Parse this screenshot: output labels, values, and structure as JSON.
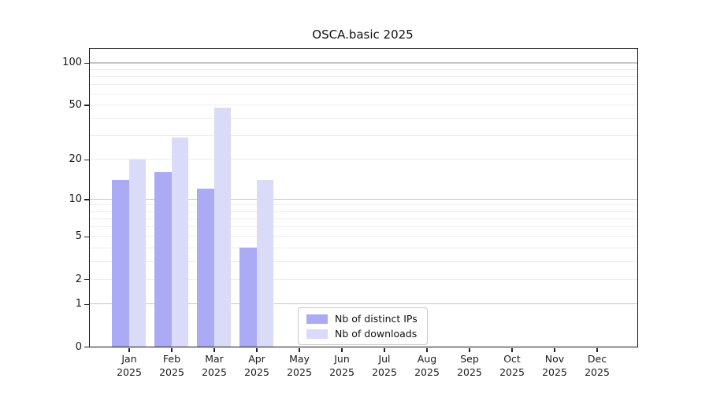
{
  "title": "OSCA.basic 2025",
  "legend": {
    "items": [
      {
        "label": "Nb of distinct IPs",
        "color": "#aaaaf5"
      },
      {
        "label": "Nb of downloads",
        "color": "#dadaf9"
      }
    ]
  },
  "chart_data": {
    "type": "bar",
    "title": "OSCA.basic 2025",
    "categories": [
      "Jan",
      "Feb",
      "Mar",
      "Apr",
      "May",
      "Jun",
      "Jul",
      "Aug",
      "Sep",
      "Oct",
      "Nov",
      "Dec"
    ],
    "category_year": "2025",
    "series": [
      {
        "name": "Nb of distinct IPs",
        "color": "#aaaaf5",
        "values": [
          14,
          16,
          12,
          4,
          null,
          null,
          null,
          null,
          null,
          null,
          null,
          null
        ]
      },
      {
        "name": "Nb of downloads",
        "color": "#dadaf9",
        "values": [
          20,
          29,
          48,
          14,
          null,
          null,
          null,
          null,
          null,
          null,
          null,
          null
        ]
      }
    ],
    "yscale": "log1p",
    "ylim": [
      0,
      126
    ],
    "ytick_labels": [
      "100",
      "50",
      "20",
      "10",
      "5",
      "2",
      "1",
      "0"
    ],
    "ytick_values": [
      100,
      50,
      20,
      10,
      5,
      2,
      1,
      0
    ],
    "grid_major_values": [
      1,
      10,
      100
    ],
    "grid_minor_values": [
      2,
      3,
      4,
      5,
      6,
      7,
      8,
      9,
      20,
      30,
      40,
      50,
      60,
      70,
      80,
      90
    ],
    "grid": true,
    "legend_position": "inside-bottom-center-right",
    "colors": {
      "grid_major": "#c6c6c6",
      "grid_minor": "#ededed",
      "spine": "#141414",
      "text": "#1a1a1a"
    }
  }
}
